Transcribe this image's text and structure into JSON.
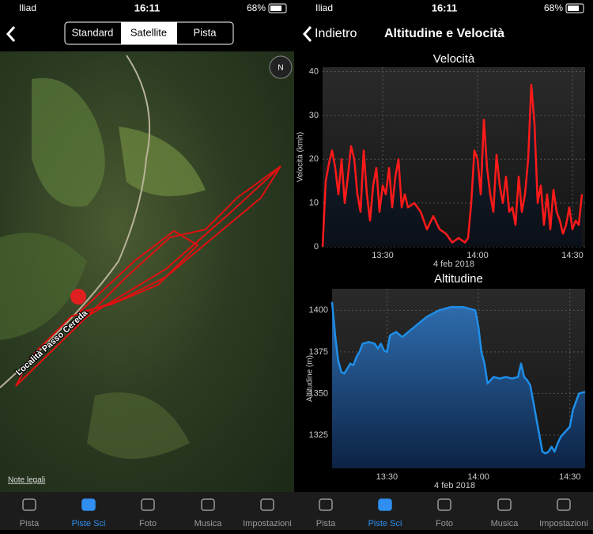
{
  "left": {
    "status": {
      "carrier": "Iliad",
      "time": "16:11",
      "battery": "68%"
    },
    "segments": [
      "Standard",
      "Satellite",
      "Pista"
    ],
    "map_label": "Località Passo Cereda",
    "legal": "Note legali"
  },
  "right": {
    "status": {
      "carrier": "Iliad",
      "time": "16:11",
      "battery": "68%"
    },
    "back": "Indietro",
    "title": "Altitudine e Velocità"
  },
  "tabs": [
    "Pista",
    "Piste Sci",
    "Foto",
    "Musica",
    "Impostazioni"
  ],
  "chart_data": [
    {
      "type": "line",
      "title": "Velocità",
      "y_label": "Velocità (kmh)",
      "x_label": "4 feb 2018",
      "color": "#ff1a1a",
      "grid": true,
      "xlim": [
        "13:11",
        "14:34"
      ],
      "xticks": [
        "13:30",
        "14:00",
        "14:30"
      ],
      "ylim": [
        0,
        41
      ],
      "yticks": [
        0,
        10,
        20,
        30,
        40
      ],
      "x": [
        "13:11",
        "13:12",
        "13:13",
        "13:14",
        "13:15",
        "13:16",
        "13:17",
        "13:18",
        "13:19",
        "13:20",
        "13:21",
        "13:22",
        "13:23",
        "13:24",
        "13:25",
        "13:26",
        "13:27",
        "13:28",
        "13:29",
        "13:30",
        "13:31",
        "13:32",
        "13:33",
        "13:34",
        "13:35",
        "13:36",
        "13:37",
        "13:38",
        "13:40",
        "13:42",
        "13:44",
        "13:46",
        "13:48",
        "13:50",
        "13:52",
        "13:54",
        "13:56",
        "13:57",
        "13:58",
        "13:59",
        "14:00",
        "14:01",
        "14:02",
        "14:03",
        "14:04",
        "14:05",
        "14:06",
        "14:07",
        "14:08",
        "14:09",
        "14:10",
        "14:11",
        "14:12",
        "14:13",
        "14:14",
        "14:15",
        "14:16",
        "14:17",
        "14:18",
        "14:19",
        "14:20",
        "14:21",
        "14:22",
        "14:23",
        "14:24",
        "14:25",
        "14:26",
        "14:27",
        "14:28",
        "14:29",
        "14:30",
        "14:31",
        "14:32",
        "14:33"
      ],
      "values": [
        0,
        15,
        19,
        22,
        18,
        12,
        20,
        10,
        16,
        23,
        20,
        12,
        8,
        22,
        12,
        6,
        14,
        18,
        8,
        14,
        12,
        18,
        9,
        16,
        20,
        9,
        12,
        9,
        10,
        8,
        4,
        7,
        4,
        3,
        1,
        2,
        1,
        2,
        10,
        22,
        20,
        12,
        29,
        18,
        12,
        8,
        21,
        14,
        10,
        16,
        8,
        9,
        5,
        16,
        8,
        12,
        20,
        37,
        28,
        10,
        14,
        5,
        12,
        4,
        13,
        8,
        6,
        3,
        5,
        9,
        4,
        6,
        5,
        12
      ]
    },
    {
      "type": "line",
      "title": "Altitudine",
      "y_label": "Altitudine (m)",
      "x_label": "4 feb 2018",
      "color": "#1e8ee8",
      "grid": true,
      "xlim": [
        "13:12",
        "14:35"
      ],
      "xticks": [
        "13:30",
        "14:00",
        "14:30"
      ],
      "ylim": [
        1305,
        1413
      ],
      "yticks": [
        1325,
        1350,
        1375,
        1400
      ],
      "x": [
        "13:12",
        "13:13",
        "13:14",
        "13:15",
        "13:16",
        "13:17",
        "13:18",
        "13:19",
        "13:20",
        "13:21",
        "13:22",
        "13:24",
        "13:26",
        "13:27",
        "13:28",
        "13:29",
        "13:30",
        "13:31",
        "13:33",
        "13:35",
        "13:37",
        "13:39",
        "13:41",
        "13:43",
        "13:45",
        "13:47",
        "13:49",
        "13:51",
        "13:53",
        "13:55",
        "13:57",
        "13:59",
        "14:00",
        "14:01",
        "14:02",
        "14:03",
        "14:04",
        "14:05",
        "14:07",
        "14:09",
        "14:11",
        "14:13",
        "14:14",
        "14:15",
        "14:16",
        "14:17",
        "14:18",
        "14:19",
        "14:20",
        "14:21",
        "14:22",
        "14:23",
        "14:24",
        "14:25",
        "14:26",
        "14:27",
        "14:28",
        "14:30",
        "14:31",
        "14:32",
        "14:33",
        "14:35"
      ],
      "values": [
        1405,
        1385,
        1370,
        1363,
        1362,
        1365,
        1368,
        1367,
        1372,
        1375,
        1380,
        1381,
        1380,
        1377,
        1380,
        1376,
        1375,
        1385,
        1387,
        1384,
        1387,
        1390,
        1393,
        1396,
        1398,
        1400,
        1401,
        1402,
        1402,
        1402,
        1401,
        1400,
        1390,
        1375,
        1368,
        1356,
        1358,
        1360,
        1359,
        1360,
        1359,
        1360,
        1368,
        1360,
        1358,
        1355,
        1345,
        1335,
        1325,
        1315,
        1314,
        1315,
        1318,
        1315,
        1320,
        1324,
        1326,
        1330,
        1340,
        1345,
        1350,
        1351
      ]
    }
  ]
}
